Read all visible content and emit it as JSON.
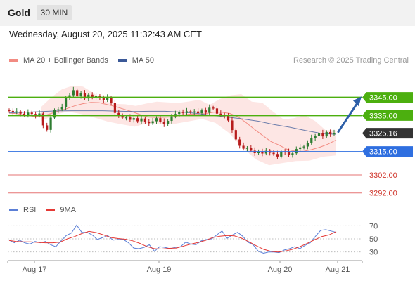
{
  "header": {
    "title": "Gold",
    "timeframe": "30 MIN"
  },
  "timestamp": "Wednesday, August 20, 2025 11:32:43 AM CET",
  "credit": "Research © 2025 Trading Central",
  "legend_main": [
    {
      "label": "MA 20 + Bollinger Bands",
      "color": "#f28b82"
    },
    {
      "label": "MA 50",
      "color": "#3b5998"
    }
  ],
  "legend_rsi": [
    {
      "label": "RSI",
      "color": "#5b7fd6"
    },
    {
      "label": "9MA",
      "color": "#e53935"
    }
  ],
  "colors": {
    "resistance": "#4caf0f",
    "support": "#2f6fe0",
    "target": "#e57373",
    "current": "#333333",
    "candle_up": "#2e7d32",
    "candle_down": "#b71c1c",
    "band_fill": "#fde3e1",
    "ma20": "#f28b82",
    "ma50": "#3b5998",
    "arrow": "#2d5fa8"
  },
  "chart_data": [
    {
      "type": "candlestick",
      "title": "Gold 30 MIN",
      "x_tick_labels": [
        "Aug 17",
        "Aug 19",
        "Aug 20",
        "Aug 21"
      ],
      "ylim": [
        3288,
        3362
      ],
      "series": [
        {
          "name": "Price",
          "values": [
            3337.5,
            3336.8,
            3337.2,
            3336.0,
            3335.4,
            3336.6,
            3335.8,
            3334.9,
            3336.1,
            3329.5,
            3327.0,
            3333.8,
            3337.9,
            3338.4,
            3339.6,
            3344.6,
            3346.2,
            3349.0,
            3345.8,
            3347.3,
            3344.4,
            3346.5,
            3345.0,
            3345.8,
            3344.7,
            3343.5,
            3344.9,
            3342.1,
            3336.4,
            3335.1,
            3333.8,
            3333.9,
            3332.6,
            3333.5,
            3331.8,
            3333.3,
            3331.4,
            3330.7,
            3331.8,
            3333.5,
            3331.6,
            3330.1,
            3332.0,
            3334.5,
            3335.8,
            3336.9,
            3336.4,
            3337.3,
            3336.9,
            3337.2,
            3336.3,
            3337.8,
            3336.5,
            3339.3,
            3338.9,
            3336.0,
            3335.4,
            3334.9,
            3332.2,
            3326.9,
            3321.7,
            3318.2,
            3316.6,
            3317.0,
            3315.5,
            3314.1,
            3315.1,
            3313.9,
            3315.4,
            3314.3,
            3313.6,
            3312.2,
            3315.0,
            3314.8,
            3313.1,
            3314.0,
            3316.4,
            3317.3,
            3317.8,
            3319.8,
            3322.5,
            3323.7,
            3325.2,
            3323.4,
            3325.8,
            3324.6,
            3325.2
          ]
        },
        {
          "name": "MA 20",
          "values": [
            3336.3,
            3336.0,
            3335.1,
            3334.5,
            3334.4,
            3335.9,
            3337.4,
            3338.7,
            3340.3,
            3341.5,
            3342.2,
            3342.1,
            3341.0,
            3339.9,
            3338.5,
            3337.1,
            3335.5,
            3334.1,
            3333.9,
            3334.0,
            3334.2,
            3335.1,
            3335.7,
            3335.8,
            3336.0,
            3336.8,
            3336.8,
            3336.1,
            3334.2,
            3331.0,
            3327.3,
            3323.9,
            3320.6,
            3318.6,
            3316.2,
            3315.2,
            3315.1,
            3316.1,
            3317.4,
            3319.1,
            3321.4
          ]
        },
        {
          "name": "MA 50",
          "values": [
            3336.4,
            3336.8,
            3337.1,
            3337.5,
            3337.6,
            3337.6,
            3337.6,
            3337.4,
            3337.2,
            3337.3,
            3337.3,
            3336.9,
            3336.2,
            3335.1,
            3334.1,
            3333.1,
            3331.8,
            3330.0,
            3328.5,
            3326.7,
            3325.1,
            3324.5
          ]
        },
        {
          "name": "Bollinger upper",
          "values": [
            3339.5,
            3345.0,
            3349.5,
            3351.5,
            3351.0,
            3347.4,
            3342.9,
            3341.4,
            3341.2,
            3340.3,
            3341.6,
            3342.6,
            3342.2,
            3341.9,
            3342.7,
            3343.7,
            3340.9,
            3344.2,
            3346.2,
            3346.8,
            3342.6,
            3342.0,
            3337.2,
            3332.9,
            3333.5,
            3335.2,
            3331.9,
            3326.8,
            3326.8
          ]
        },
        {
          "name": "Bollinger lower",
          "values": [
            3331.7,
            3335.3,
            3337.1,
            3335.8,
            3333.8,
            3331.6,
            3330.1,
            3328.8,
            3330.9,
            3330.4,
            3330.4,
            3331.7,
            3333.1,
            3330.9,
            3325.4,
            3317.3,
            3310.7,
            3307.4,
            3308.6,
            3309.7,
            3309.9,
            3312.1,
            3312.8
          ]
        }
      ],
      "levels": [
        {
          "label": "3345.00",
          "value": 3345.0,
          "kind": "resistance"
        },
        {
          "label": "3335.00",
          "value": 3335.0,
          "kind": "resistance"
        },
        {
          "label": "3325.16",
          "value": 3325.16,
          "kind": "current"
        },
        {
          "label": "3315.00",
          "value": 3315.0,
          "kind": "support"
        },
        {
          "label": "3302.00",
          "value": 3302.0,
          "kind": "target"
        },
        {
          "label": "3292.00",
          "value": 3292.0,
          "kind": "target"
        }
      ],
      "projection": {
        "from": 3325.16,
        "to": 3344.0,
        "direction": "up"
      }
    },
    {
      "type": "line",
      "title": "RSI",
      "ylim": [
        20,
        80
      ],
      "y_tick_labels": [
        "70",
        "50",
        "30"
      ],
      "y_ticks": [
        70,
        50,
        30
      ],
      "series": [
        {
          "name": "RSI",
          "values": [
            48,
            44,
            48,
            44,
            42,
            46,
            44,
            46,
            41,
            38,
            47,
            55,
            59,
            71,
            60,
            60,
            56,
            49,
            52,
            55,
            48,
            49,
            49,
            44,
            36,
            35,
            37,
            41,
            31,
            38,
            37,
            35,
            37,
            38,
            45,
            42,
            41,
            47,
            49,
            50,
            56,
            62,
            51,
            56,
            60,
            54,
            45,
            41,
            31,
            28,
            30,
            30,
            29,
            33,
            35,
            38,
            35,
            40,
            44,
            54,
            63,
            64,
            62,
            60
          ]
        },
        {
          "name": "9MA",
          "values": [
            47.5,
            46,
            45.5,
            45.5,
            44.5,
            44,
            44,
            45,
            50,
            53.5,
            58,
            61.5,
            59.5,
            56,
            52,
            50.5,
            49.5,
            47,
            43,
            38,
            35,
            34.5,
            35.5,
            36,
            39,
            42,
            44.5,
            47.5,
            52,
            54,
            55,
            54.5,
            51,
            45.5,
            39.5,
            34,
            31,
            30,
            31.5,
            34,
            38,
            43,
            48.5,
            53.5,
            56,
            61
          ]
        }
      ]
    }
  ]
}
